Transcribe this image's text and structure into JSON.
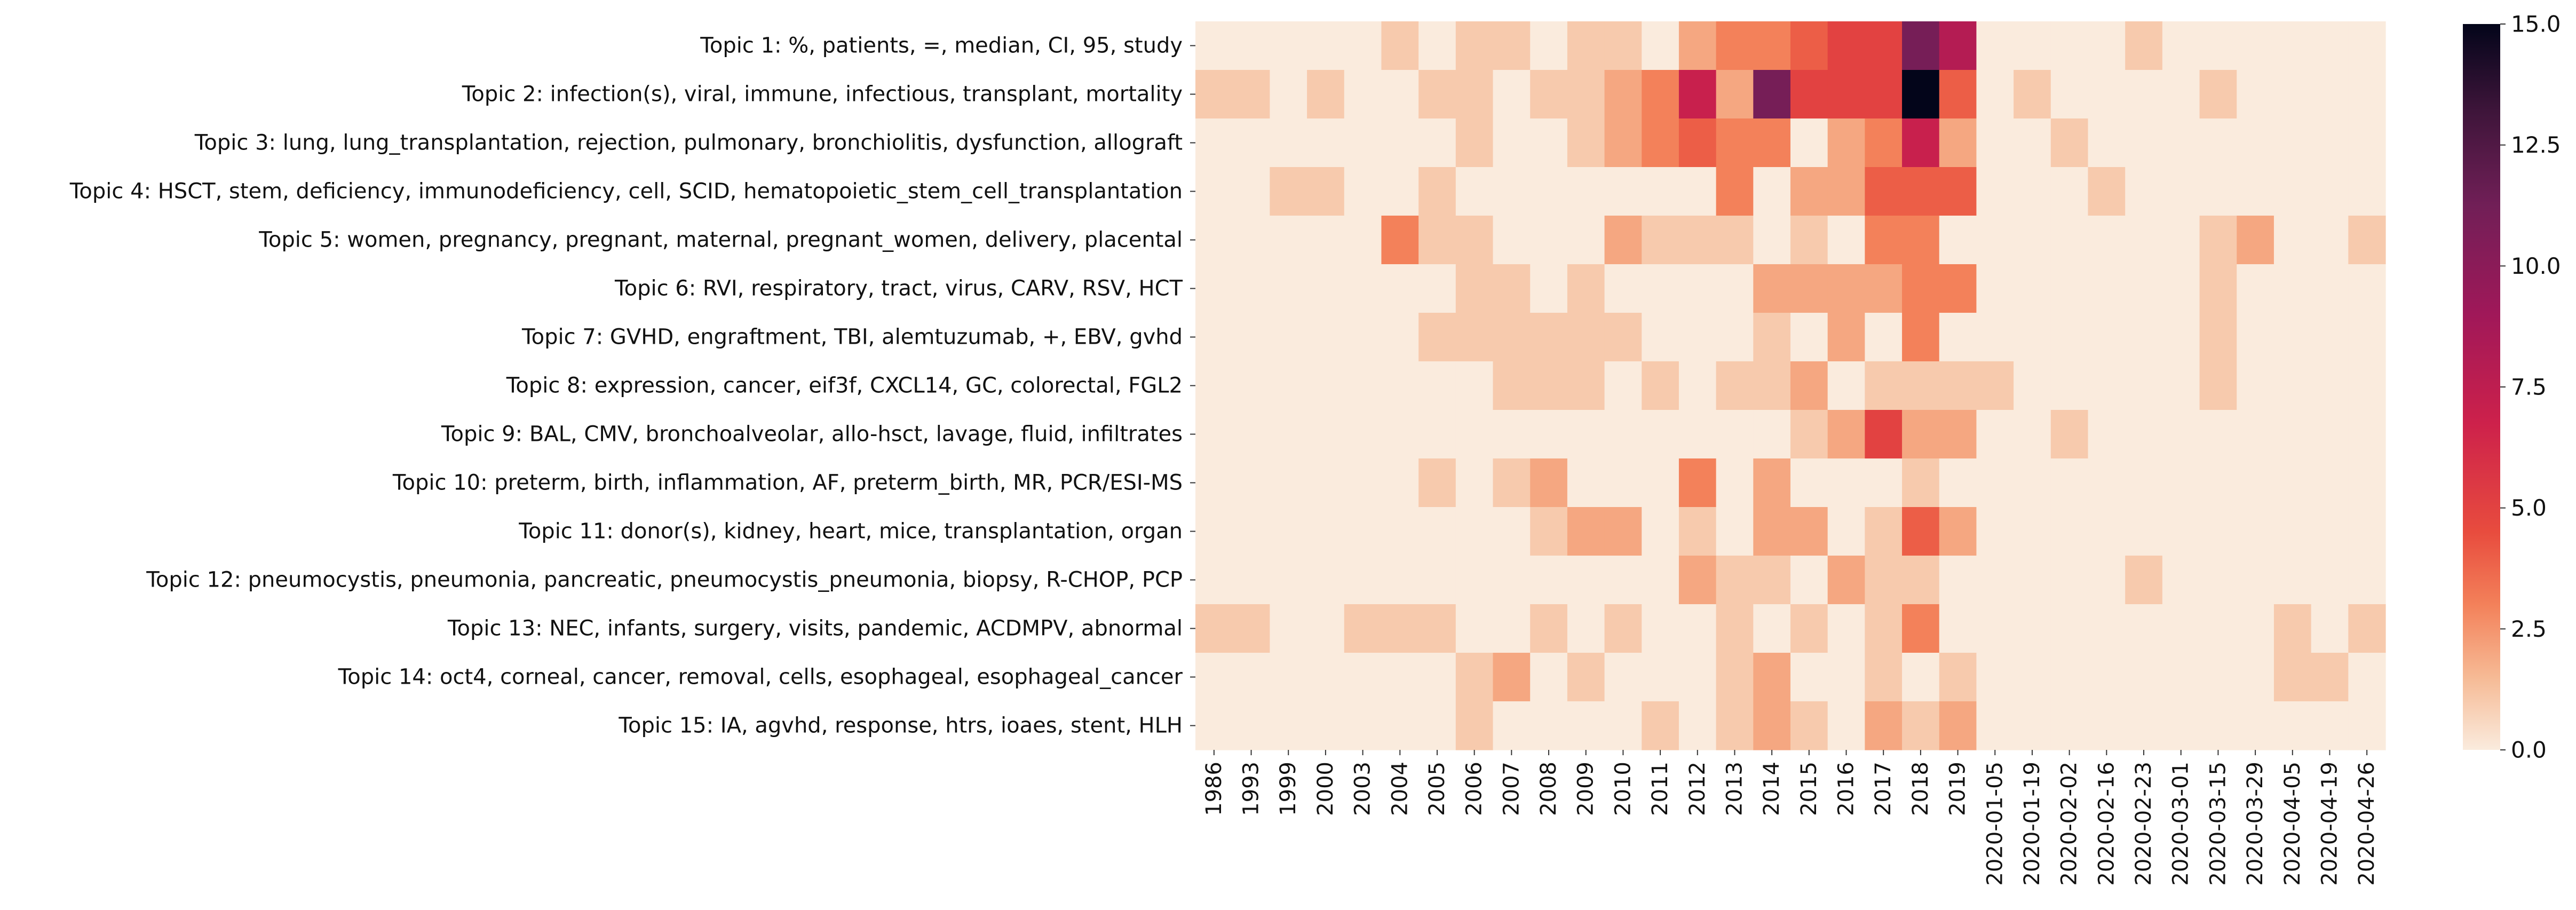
{
  "chart_data": {
    "type": "heatmap",
    "title": "",
    "xlabel": "",
    "ylabel": "",
    "x": [
      "1986",
      "1993",
      "1999",
      "2000",
      "2003",
      "2004",
      "2005",
      "2006",
      "2007",
      "2008",
      "2009",
      "2010",
      "2011",
      "2012",
      "2013",
      "2014",
      "2015",
      "2016",
      "2017",
      "2018",
      "2019",
      "2020-01-05",
      "2020-01-19",
      "2020-02-02",
      "2020-02-16",
      "2020-02-23",
      "2020-03-01",
      "2020-03-15",
      "2020-03-29",
      "2020-04-05",
      "2020-04-19",
      "2020-04-26"
    ],
    "y": [
      "Topic 1: %, patients, =, median, CI, 95, study",
      "Topic 2: infection(s), viral, immune, infectious, transplant, mortality",
      "Topic 3: lung, lung_transplantation, rejection, pulmonary, bronchiolitis, dysfunction, allograft",
      "Topic 4: HSCT, stem, deficiency, immunodeficiency, cell, SCID, hematopoietic_stem_cell_transplantation",
      "Topic 5: women, pregnancy, pregnant, maternal, pregnant_women, delivery, placental",
      "Topic 6: RVI, respiratory, tract, virus, CARV, RSV, HCT",
      "Topic 7: GVHD, engraftment, TBI, alemtuzumab, +, EBV, gvhd",
      "Topic 8: expression, cancer, eif3f, CXCL14, GC, colorectal, FGL2",
      "Topic 9: BAL, CMV, bronchoalveolar, allo-hsct, lavage, fluid, infiltrates",
      "Topic 10: preterm, birth, inflammation, AF, preterm_birth, MR, PCR/ESI-MS",
      "Topic 11: donor(s), kidney, heart, mice, transplantation, organ",
      "Topic 12: pneumocystis, pneumonia, pancreatic, pneumocystis_pneumonia, biopsy, R-CHOP, PCP",
      "Topic 13: NEC, infants, surgery, visits, pandemic, ACDMPV, abnormal",
      "Topic 14: oct4, corneal, cancer, removal, cells, esophageal, esophageal_cancer",
      "Topic 15: IA, agvhd, response, htrs, ioaes, stent, HLH"
    ],
    "values": [
      [
        0,
        0,
        0,
        0,
        0,
        1,
        0,
        1,
        1,
        0,
        1,
        1,
        0,
        2,
        3,
        3,
        4,
        5,
        5,
        11,
        8,
        0,
        0,
        0,
        0,
        1,
        0,
        0,
        0,
        0,
        0,
        0
      ],
      [
        1,
        1,
        0,
        1,
        0,
        0,
        1,
        1,
        0,
        1,
        1,
        2,
        3,
        7,
        2,
        11,
        5,
        5,
        5,
        15,
        4,
        0,
        1,
        0,
        0,
        0,
        0,
        1,
        0,
        0,
        0,
        0
      ],
      [
        0,
        0,
        0,
        0,
        0,
        0,
        0,
        1,
        0,
        0,
        1,
        2,
        3,
        4,
        3,
        3,
        0,
        2,
        3,
        7,
        2,
        0,
        0,
        1,
        0,
        0,
        0,
        0,
        0,
        0,
        0,
        0
      ],
      [
        0,
        0,
        1,
        1,
        0,
        0,
        1,
        0,
        0,
        0,
        0,
        0,
        0,
        0,
        3,
        0,
        2,
        2,
        4,
        4,
        4,
        0,
        0,
        0,
        1,
        0,
        0,
        0,
        0,
        0,
        0,
        0
      ],
      [
        0,
        0,
        0,
        0,
        0,
        3,
        1,
        1,
        0,
        0,
        0,
        2,
        1,
        1,
        1,
        0,
        1,
        0,
        3,
        3,
        0,
        0,
        0,
        0,
        0,
        0,
        0,
        1,
        2,
        0,
        0,
        1
      ],
      [
        0,
        0,
        0,
        0,
        0,
        0,
        0,
        1,
        1,
        0,
        1,
        0,
        0,
        0,
        0,
        2,
        2,
        2,
        2,
        3,
        3,
        0,
        0,
        0,
        0,
        0,
        0,
        1,
        0,
        0,
        0,
        0
      ],
      [
        0,
        0,
        0,
        0,
        0,
        0,
        1,
        1,
        1,
        1,
        1,
        1,
        0,
        0,
        0,
        1,
        0,
        2,
        0,
        3,
        0,
        0,
        0,
        0,
        0,
        0,
        0,
        1,
        0,
        0,
        0,
        0
      ],
      [
        0,
        0,
        0,
        0,
        0,
        0,
        0,
        0,
        1,
        1,
        1,
        0,
        1,
        0,
        1,
        1,
        2,
        0,
        1,
        1,
        1,
        1,
        0,
        0,
        0,
        0,
        0,
        1,
        0,
        0,
        0,
        0
      ],
      [
        0,
        0,
        0,
        0,
        0,
        0,
        0,
        0,
        0,
        0,
        0,
        0,
        0,
        0,
        0,
        0,
        1,
        2,
        5,
        2,
        2,
        0,
        0,
        1,
        0,
        0,
        0,
        0,
        0,
        0,
        0,
        0
      ],
      [
        0,
        0,
        0,
        0,
        0,
        0,
        1,
        0,
        1,
        2,
        0,
        0,
        0,
        3,
        0,
        2,
        0,
        0,
        0,
        1,
        0,
        0,
        0,
        0,
        0,
        0,
        0,
        0,
        0,
        0,
        0,
        0
      ],
      [
        0,
        0,
        0,
        0,
        0,
        0,
        0,
        0,
        0,
        1,
        2,
        2,
        0,
        1,
        0,
        2,
        2,
        0,
        1,
        4,
        2,
        0,
        0,
        0,
        0,
        0,
        0,
        0,
        0,
        0,
        0,
        0
      ],
      [
        0,
        0,
        0,
        0,
        0,
        0,
        0,
        0,
        0,
        0,
        0,
        0,
        0,
        2,
        1,
        1,
        0,
        2,
        1,
        1,
        0,
        0,
        0,
        0,
        0,
        1,
        0,
        0,
        0,
        0,
        0,
        0
      ],
      [
        1,
        1,
        0,
        0,
        1,
        1,
        1,
        0,
        0,
        1,
        0,
        1,
        0,
        0,
        1,
        0,
        1,
        0,
        1,
        3,
        0,
        0,
        0,
        0,
        0,
        0,
        0,
        0,
        0,
        1,
        0,
        1
      ],
      [
        0,
        0,
        0,
        0,
        0,
        0,
        0,
        1,
        2,
        0,
        1,
        0,
        0,
        0,
        1,
        2,
        0,
        0,
        1,
        0,
        1,
        0,
        0,
        0,
        0,
        0,
        0,
        0,
        0,
        1,
        1,
        0
      ],
      [
        0,
        0,
        0,
        0,
        0,
        0,
        0,
        1,
        0,
        0,
        0,
        0,
        1,
        0,
        1,
        2,
        1,
        0,
        2,
        1,
        2,
        0,
        0,
        0,
        0,
        0,
        0,
        0,
        0,
        0,
        0,
        0
      ]
    ],
    "vmin": 0,
    "vmax": 15,
    "colorbar_ticks": [
      0,
      2.5,
      5,
      7.5,
      10,
      12.5,
      15
    ],
    "colorbar_tick_labels": [
      "0.0",
      "2.5",
      "5.0",
      "7.5",
      "10.0",
      "12.5",
      "15.0"
    ],
    "colormap": "rocket_r",
    "grid": false,
    "legend": "colorbar-right"
  }
}
